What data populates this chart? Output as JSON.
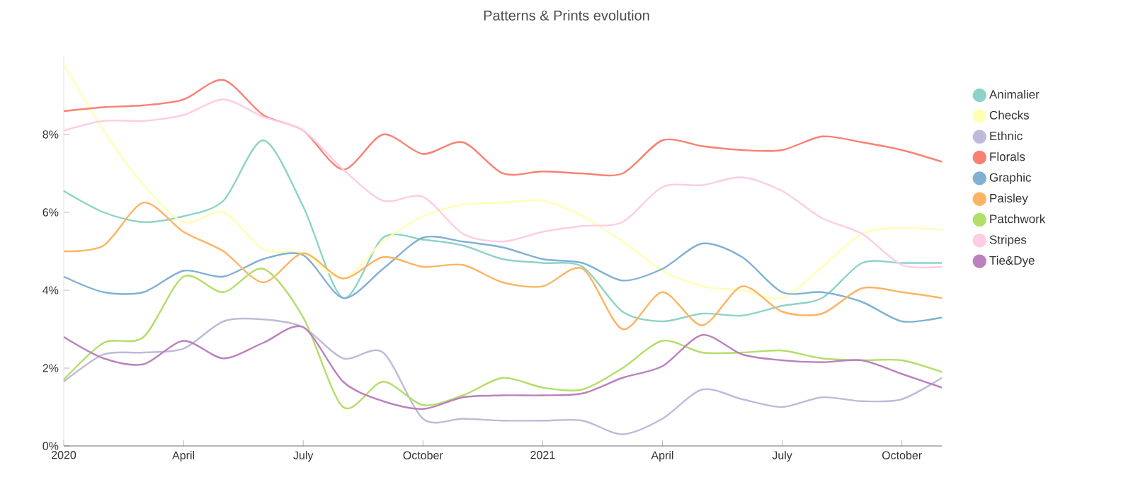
{
  "chart_data": {
    "type": "line",
    "title": "Patterns & Prints evolution",
    "x": [
      "2020-01",
      "2020-02",
      "2020-03",
      "2020-04",
      "2020-05",
      "2020-06",
      "2020-07",
      "2020-08",
      "2020-09",
      "2020-10",
      "2020-11",
      "2020-12",
      "2021-01",
      "2021-02",
      "2021-03",
      "2021-04",
      "2021-05",
      "2021-06",
      "2021-07",
      "2021-08",
      "2021-09",
      "2021-10",
      "2021-11"
    ],
    "series": [
      {
        "name": "Animalier",
        "color": "#8dd3c7",
        "values": [
          6.55,
          6.0,
          5.75,
          5.9,
          6.3,
          7.85,
          6.15,
          3.8,
          5.35,
          5.3,
          5.15,
          4.8,
          4.7,
          4.6,
          3.45,
          3.2,
          3.4,
          3.35,
          3.6,
          3.8,
          4.7,
          4.7,
          4.7
        ]
      },
      {
        "name": "Checks",
        "color": "#ffffb3",
        "values": [
          9.8,
          8.1,
          6.7,
          5.75,
          6.0,
          5.05,
          4.95,
          4.3,
          5.25,
          5.9,
          6.2,
          6.25,
          6.3,
          5.9,
          5.25,
          4.5,
          4.1,
          4.0,
          3.8,
          4.6,
          5.45,
          5.6,
          5.55
        ]
      },
      {
        "name": "Ethnic",
        "color": "#bebada",
        "values": [
          1.65,
          2.35,
          2.4,
          2.5,
          3.2,
          3.25,
          3.05,
          2.25,
          2.4,
          0.7,
          0.7,
          0.65,
          0.65,
          0.65,
          0.3,
          0.7,
          1.45,
          1.2,
          1.0,
          1.25,
          1.15,
          1.2,
          1.75
        ]
      },
      {
        "name": "Florals",
        "color": "#fb8072",
        "values": [
          8.6,
          8.7,
          8.75,
          8.9,
          9.4,
          8.5,
          8.1,
          7.1,
          8.0,
          7.5,
          7.8,
          7.0,
          7.05,
          7.0,
          7.0,
          7.85,
          7.7,
          7.6,
          7.6,
          7.95,
          7.8,
          7.6,
          7.3
        ]
      },
      {
        "name": "Graphic",
        "color": "#80b1d3",
        "values": [
          4.35,
          3.95,
          3.95,
          4.5,
          4.35,
          4.8,
          4.9,
          3.8,
          4.55,
          5.35,
          5.25,
          5.1,
          4.8,
          4.7,
          4.25,
          4.55,
          5.2,
          4.85,
          3.95,
          3.95,
          3.7,
          3.2,
          3.3
        ]
      },
      {
        "name": "Paisley",
        "color": "#fdb462",
        "values": [
          5.0,
          5.15,
          6.25,
          5.5,
          5.0,
          4.2,
          4.95,
          4.3,
          4.85,
          4.6,
          4.65,
          4.2,
          4.1,
          4.55,
          3.0,
          3.95,
          3.1,
          4.1,
          3.45,
          3.4,
          4.05,
          3.95,
          3.8
        ]
      },
      {
        "name": "Patchwork",
        "color": "#b3de69",
        "values": [
          1.7,
          2.65,
          2.8,
          4.35,
          3.95,
          4.55,
          3.3,
          1.0,
          1.65,
          1.05,
          1.3,
          1.75,
          1.5,
          1.45,
          2.0,
          2.7,
          2.4,
          2.4,
          2.45,
          2.25,
          2.2,
          2.2,
          1.9
        ]
      },
      {
        "name": "Stripes",
        "color": "#fccde5",
        "values": [
          8.1,
          8.35,
          8.35,
          8.5,
          8.9,
          8.45,
          8.1,
          7.1,
          6.3,
          6.4,
          5.45,
          5.25,
          5.5,
          5.65,
          5.75,
          6.65,
          6.7,
          6.9,
          6.55,
          5.85,
          5.45,
          4.65,
          4.6
        ]
      },
      {
        "name": "Tie&Dye",
        "color": "#bc80bd",
        "values": [
          2.8,
          2.25,
          2.1,
          2.7,
          2.25,
          2.65,
          3.05,
          1.65,
          1.15,
          0.95,
          1.25,
          1.3,
          1.3,
          1.35,
          1.75,
          2.05,
          2.85,
          2.35,
          2.2,
          2.15,
          2.2,
          1.85,
          1.5
        ]
      }
    ],
    "xlim": [
      "2020-01",
      "2021-11"
    ],
    "xticks": [
      {
        "value": "2020-01",
        "label": "2020"
      },
      {
        "value": "2020-04",
        "label": "April"
      },
      {
        "value": "2020-07",
        "label": "July"
      },
      {
        "value": "2020-10",
        "label": "October"
      },
      {
        "value": "2021-01",
        "label": "2021"
      },
      {
        "value": "2021-04",
        "label": "April"
      },
      {
        "value": "2021-07",
        "label": "July"
      },
      {
        "value": "2021-10",
        "label": "October"
      }
    ],
    "ylim": [
      0,
      10
    ],
    "yticks": [
      {
        "value": 0,
        "label": "0%"
      },
      {
        "value": 2,
        "label": "2%"
      },
      {
        "value": 4,
        "label": "4%"
      },
      {
        "value": 6,
        "label": "6%"
      },
      {
        "value": 8,
        "label": "8%"
      }
    ],
    "legend": "right",
    "marker": "none"
  }
}
